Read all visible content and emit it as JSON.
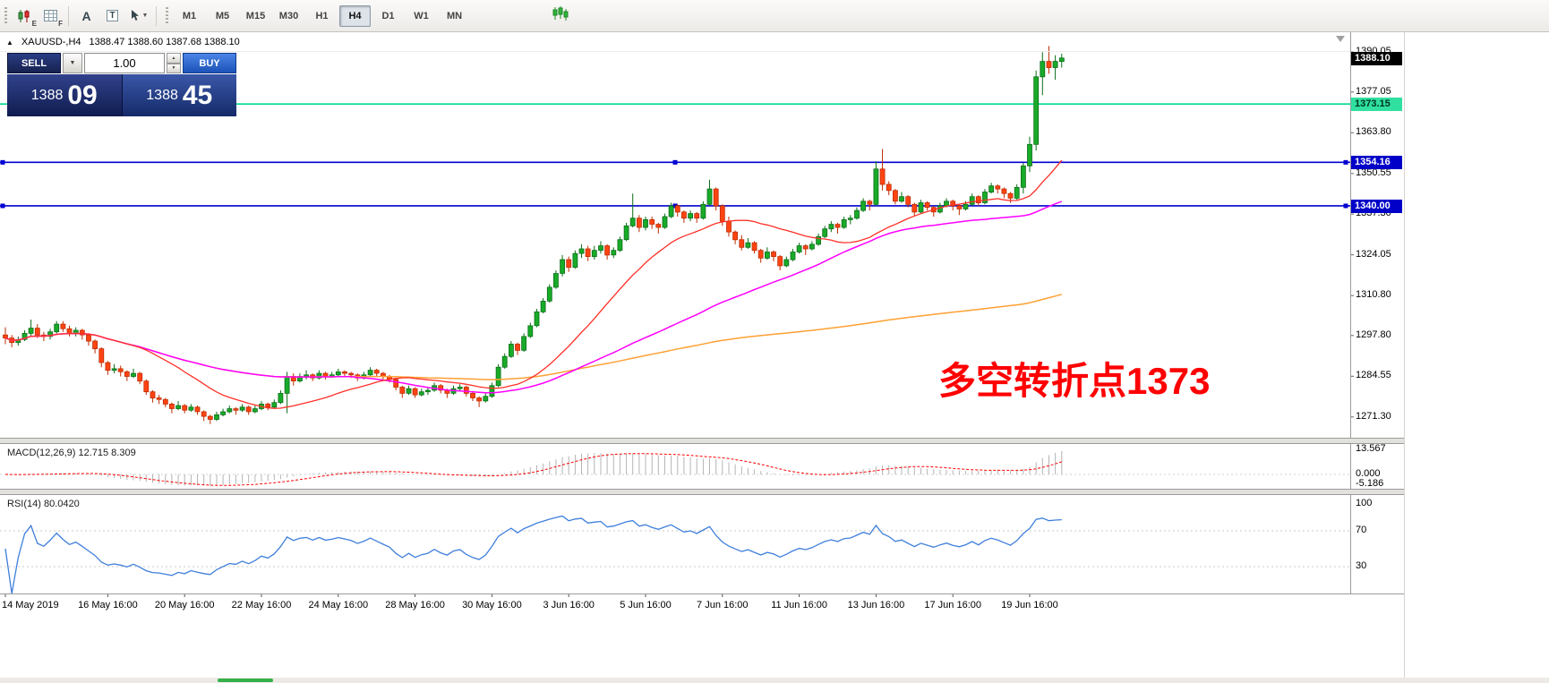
{
  "glyphs": {
    "dropdown": "▼",
    "spin_up": "▲",
    "spin_down": "▼",
    "collapse": "▲"
  },
  "toolbar": {
    "icons": [
      {
        "name": "candlestick-chart-icon",
        "sub": "E"
      },
      {
        "name": "grid-icon",
        "sub": "F"
      },
      {
        "name": "text-tool-icon",
        "glyph": "A"
      },
      {
        "name": "text-label-tool-icon",
        "glyph": "T"
      },
      {
        "name": "cursor-tool-icon",
        "dropdown": true
      }
    ],
    "timeframes": [
      {
        "label": "M1"
      },
      {
        "label": "M5"
      },
      {
        "label": "M15"
      },
      {
        "label": "M30"
      },
      {
        "label": "H1"
      },
      {
        "label": "H4"
      },
      {
        "label": "D1"
      },
      {
        "label": "W1"
      },
      {
        "label": "MN"
      }
    ],
    "active_timeframe": "H4"
  },
  "symbol_bar": {
    "title": "XAUUSD-,H4",
    "ohlc": "1388.47 1388.60 1387.68 1388.10"
  },
  "trade_panel": {
    "sell_label": "SELL",
    "buy_label": "BUY",
    "volume": "1.00",
    "bid": {
      "small": "1388",
      "big": "09"
    },
    "ask": {
      "small": "1388",
      "big": "45"
    }
  },
  "annotation": {
    "text": "多空转折点1373",
    "color": "#ff0000"
  },
  "indicators": {
    "macd": {
      "label": "MACD(12,26,9) 12.715 8.309",
      "ticks": [
        "13.567",
        "0.000",
        "-5.186"
      ]
    },
    "rsi": {
      "label": "RSI(14) 80.0420",
      "ticks": [
        "100",
        "70",
        "30"
      ]
    }
  },
  "chart_data": {
    "type": "candlestick",
    "symbol": "XAUUSD-",
    "timeframe": "H4",
    "ylim": [
      1264.84,
      1396.5
    ],
    "y_ticks": [
      1390.05,
      1377.05,
      1363.8,
      1350.55,
      1337.3,
      1324.05,
      1310.8,
      1297.8,
      1284.55,
      1271.3
    ],
    "bull_color": "#18ab29",
    "bull_border": "#0c6e18",
    "bear_color": "#ff4412",
    "bear_border": "#bd2c00",
    "current_price": {
      "price": 1388.1,
      "label": "1388.10",
      "label_bg": "#000000",
      "label_fg": "#ffffff"
    },
    "levels": [
      {
        "price": 1373.15,
        "label": "1373.15",
        "color": "#00dc8c",
        "width": 1.6,
        "label_bg": "#2fe0a0",
        "label_fg": "#00321f",
        "markers": false
      },
      {
        "price": 1354.16,
        "label": "1354.16",
        "color": "#0000d0",
        "width": 1.6,
        "label_bg": "#0000c8",
        "label_fg": "#ffffff",
        "markers": true
      },
      {
        "price": 1340.0,
        "label": "1340.00",
        "color": "#0000d0",
        "width": 1.6,
        "label_bg": "#0000c8",
        "label_fg": "#ffffff",
        "markers": true
      }
    ],
    "moving_averages": [
      {
        "name": "fast",
        "type": "sma",
        "period": 20,
        "color": "#ff3028",
        "width": 1.3
      },
      {
        "name": "mid",
        "type": "sma",
        "period": 55,
        "color": "#ff00ff",
        "width": 1.5
      },
      {
        "name": "slow",
        "type": "sma",
        "period": 160,
        "color": "#ffa033",
        "width": 1.5
      }
    ],
    "macd": {
      "fast": 12,
      "slow": 26,
      "signal": 9,
      "main_color": "#b4b4b4",
      "signal_color": "#ff0000",
      "ticks": [
        13.567,
        0.0,
        -5.186
      ]
    },
    "rsi": {
      "period": 14,
      "color": "#3f7fdc",
      "levels": [
        70,
        30
      ],
      "ticks": [
        100,
        70,
        30
      ]
    },
    "x_labels": [
      {
        "text": "14 May 2019",
        "index": 0
      },
      {
        "text": "16 May 16:00",
        "index": 16
      },
      {
        "text": "20 May 16:00",
        "index": 28
      },
      {
        "text": "22 May 16:00",
        "index": 40
      },
      {
        "text": "24 May 16:00",
        "index": 52
      },
      {
        "text": "28 May 16:00",
        "index": 64
      },
      {
        "text": "30 May 16:00",
        "index": 76
      },
      {
        "text": "3 Jun 16:00",
        "index": 88
      },
      {
        "text": "5 Jun 16:00",
        "index": 100
      },
      {
        "text": "7 Jun 16:00",
        "index": 112
      },
      {
        "text": "11 Jun 16:00",
        "index": 124
      },
      {
        "text": "13 Jun 16:00",
        "index": 136
      },
      {
        "text": "17 Jun 16:00",
        "index": 148
      },
      {
        "text": "19 Jun 16:00",
        "index": 160
      }
    ],
    "ohlc": [
      [
        1298.0,
        1300.5,
        1295.0,
        1297.0
      ],
      [
        1297.0,
        1298.0,
        1294.0,
        1295.5
      ],
      [
        1295.5,
        1297.5,
        1294.5,
        1296.5
      ],
      [
        1296.5,
        1299.5,
        1296.0,
        1298.5
      ],
      [
        1298.5,
        1303.0,
        1297.5,
        1300.2
      ],
      [
        1300.2,
        1301.5,
        1297.0,
        1298.0
      ],
      [
        1298.0,
        1299.0,
        1296.0,
        1297.5
      ],
      [
        1297.5,
        1300.0,
        1296.5,
        1299.0
      ],
      [
        1299.0,
        1302.5,
        1298.5,
        1301.5
      ],
      [
        1301.5,
        1302.5,
        1299.0,
        1300.0
      ],
      [
        1300.0,
        1301.0,
        1297.5,
        1298.5
      ],
      [
        1298.5,
        1300.5,
        1297.5,
        1299.5
      ],
      [
        1299.5,
        1300.0,
        1296.5,
        1298.0
      ],
      [
        1298.0,
        1298.5,
        1294.5,
        1296.0
      ],
      [
        1296.0,
        1296.5,
        1292.0,
        1293.5
      ],
      [
        1293.5,
        1294.0,
        1287.5,
        1289.0
      ],
      [
        1289.0,
        1289.5,
        1285.0,
        1286.5
      ],
      [
        1286.5,
        1288.5,
        1285.5,
        1287.0
      ],
      [
        1287.0,
        1288.0,
        1284.5,
        1286.0
      ],
      [
        1286.0,
        1286.5,
        1283.0,
        1284.5
      ],
      [
        1284.5,
        1287.0,
        1284.0,
        1285.5
      ],
      [
        1285.5,
        1286.0,
        1282.0,
        1283.0
      ],
      [
        1283.0,
        1283.5,
        1278.5,
        1279.5
      ],
      [
        1279.5,
        1280.0,
        1276.0,
        1277.5
      ],
      [
        1277.5,
        1278.5,
        1275.5,
        1277.0
      ],
      [
        1277.0,
        1277.5,
        1274.5,
        1275.5
      ],
      [
        1275.5,
        1276.0,
        1272.5,
        1274.0
      ],
      [
        1274.0,
        1276.5,
        1273.5,
        1275.0
      ],
      [
        1275.0,
        1275.5,
        1272.5,
        1273.5
      ],
      [
        1273.5,
        1275.5,
        1273.0,
        1274.5
      ],
      [
        1274.5,
        1275.0,
        1272.0,
        1273.0
      ],
      [
        1273.0,
        1273.5,
        1270.0,
        1271.5
      ],
      [
        1271.5,
        1272.0,
        1269.0,
        1270.5
      ],
      [
        1270.5,
        1273.0,
        1270.0,
        1272.0
      ],
      [
        1272.0,
        1274.0,
        1271.5,
        1273.0
      ],
      [
        1273.0,
        1275.0,
        1272.5,
        1274.0
      ],
      [
        1274.0,
        1274.5,
        1272.0,
        1273.5
      ],
      [
        1273.5,
        1275.5,
        1273.0,
        1274.5
      ],
      [
        1274.5,
        1275.0,
        1272.0,
        1273.0
      ],
      [
        1273.0,
        1275.0,
        1272.5,
        1274.0
      ],
      [
        1274.0,
        1276.5,
        1273.5,
        1275.5
      ],
      [
        1275.5,
        1276.0,
        1273.5,
        1274.5
      ],
      [
        1274.5,
        1277.0,
        1274.0,
        1276.0
      ],
      [
        1276.0,
        1280.0,
        1275.5,
        1279.0
      ],
      [
        1279.0,
        1286.0,
        1272.5,
        1284.5
      ],
      [
        1284.5,
        1285.5,
        1281.5,
        1283.0
      ],
      [
        1283.0,
        1285.5,
        1282.5,
        1284.5
      ],
      [
        1284.5,
        1286.5,
        1283.5,
        1285.0
      ],
      [
        1285.0,
        1285.5,
        1283.0,
        1284.0
      ],
      [
        1284.0,
        1286.5,
        1283.5,
        1285.5
      ],
      [
        1285.5,
        1286.0,
        1283.5,
        1284.5
      ],
      [
        1284.5,
        1286.0,
        1284.0,
        1285.0
      ],
      [
        1285.0,
        1287.0,
        1284.5,
        1286.0
      ],
      [
        1286.0,
        1286.5,
        1284.5,
        1285.5
      ],
      [
        1285.5,
        1286.0,
        1284.0,
        1285.0
      ],
      [
        1285.0,
        1285.5,
        1283.0,
        1284.0
      ],
      [
        1284.0,
        1286.0,
        1283.5,
        1285.0
      ],
      [
        1285.0,
        1287.5,
        1284.5,
        1286.5
      ],
      [
        1286.5,
        1287.0,
        1284.5,
        1285.5
      ],
      [
        1285.5,
        1286.0,
        1283.5,
        1284.5
      ],
      [
        1284.5,
        1285.0,
        1282.5,
        1283.5
      ],
      [
        1283.5,
        1284.0,
        1280.0,
        1281.0
      ],
      [
        1281.0,
        1281.5,
        1277.5,
        1279.0
      ],
      [
        1279.0,
        1281.5,
        1278.5,
        1280.5
      ],
      [
        1280.5,
        1281.0,
        1277.5,
        1278.5
      ],
      [
        1278.5,
        1280.5,
        1278.0,
        1279.5
      ],
      [
        1279.5,
        1281.0,
        1278.5,
        1280.0
      ],
      [
        1280.0,
        1282.5,
        1279.5,
        1281.5
      ],
      [
        1281.5,
        1282.0,
        1279.0,
        1280.0
      ],
      [
        1280.0,
        1280.5,
        1277.5,
        1279.0
      ],
      [
        1279.0,
        1281.5,
        1278.5,
        1280.5
      ],
      [
        1280.5,
        1282.0,
        1280.0,
        1281.0
      ],
      [
        1281.0,
        1281.5,
        1278.0,
        1279.0
      ],
      [
        1279.0,
        1279.5,
        1276.5,
        1277.5
      ],
      [
        1277.5,
        1278.0,
        1274.5,
        1276.5
      ],
      [
        1276.5,
        1279.0,
        1276.0,
        1278.0
      ],
      [
        1278.0,
        1282.5,
        1277.5,
        1281.5
      ],
      [
        1281.5,
        1288.5,
        1281.0,
        1287.5
      ],
      [
        1287.5,
        1292.0,
        1287.0,
        1291.0
      ],
      [
        1291.0,
        1296.0,
        1290.5,
        1295.0
      ],
      [
        1295.0,
        1295.5,
        1291.5,
        1293.0
      ],
      [
        1293.0,
        1298.5,
        1292.5,
        1297.5
      ],
      [
        1297.5,
        1302.0,
        1297.0,
        1301.0
      ],
      [
        1301.0,
        1306.5,
        1300.5,
        1305.5
      ],
      [
        1305.5,
        1310.0,
        1305.0,
        1309.0
      ],
      [
        1309.0,
        1314.5,
        1308.5,
        1313.5
      ],
      [
        1313.5,
        1319.0,
        1313.0,
        1318.0
      ],
      [
        1318.0,
        1324.0,
        1317.0,
        1322.5
      ],
      [
        1322.5,
        1323.5,
        1318.5,
        1320.0
      ],
      [
        1320.0,
        1325.5,
        1319.5,
        1324.5
      ],
      [
        1324.5,
        1327.5,
        1323.0,
        1326.0
      ],
      [
        1326.0,
        1327.0,
        1322.0,
        1323.5
      ],
      [
        1323.5,
        1327.0,
        1322.5,
        1325.5
      ],
      [
        1325.5,
        1328.5,
        1324.5,
        1327.0
      ],
      [
        1327.0,
        1327.5,
        1322.5,
        1324.0
      ],
      [
        1324.0,
        1326.5,
        1323.0,
        1325.5
      ],
      [
        1325.5,
        1330.0,
        1325.0,
        1329.0
      ],
      [
        1329.0,
        1334.5,
        1328.5,
        1333.5
      ],
      [
        1333.5,
        1344.0,
        1333.0,
        1336.0
      ],
      [
        1336.0,
        1337.0,
        1331.5,
        1333.0
      ],
      [
        1333.0,
        1336.5,
        1332.0,
        1335.5
      ],
      [
        1335.5,
        1336.5,
        1332.5,
        1334.0
      ],
      [
        1334.0,
        1334.5,
        1331.0,
        1333.0
      ],
      [
        1333.0,
        1337.5,
        1332.5,
        1336.5
      ],
      [
        1336.5,
        1341.0,
        1336.0,
        1340.0
      ],
      [
        1340.0,
        1340.5,
        1336.5,
        1338.0
      ],
      [
        1338.0,
        1338.5,
        1334.5,
        1336.0
      ],
      [
        1336.0,
        1338.5,
        1335.0,
        1337.5
      ],
      [
        1337.5,
        1338.0,
        1334.5,
        1336.0
      ],
      [
        1336.0,
        1341.5,
        1335.5,
        1340.5
      ],
      [
        1340.5,
        1348.5,
        1340.0,
        1345.5
      ],
      [
        1345.5,
        1346.0,
        1338.5,
        1340.0
      ],
      [
        1340.0,
        1340.5,
        1333.5,
        1335.0
      ],
      [
        1335.0,
        1336.5,
        1330.0,
        1331.5
      ],
      [
        1331.5,
        1332.0,
        1327.5,
        1329.0
      ],
      [
        1329.0,
        1330.5,
        1325.5,
        1326.5
      ],
      [
        1326.5,
        1329.5,
        1326.0,
        1328.0
      ],
      [
        1328.0,
        1328.5,
        1324.5,
        1325.5
      ],
      [
        1325.5,
        1326.0,
        1321.5,
        1323.0
      ],
      [
        1323.0,
        1326.5,
        1322.5,
        1325.0
      ],
      [
        1325.0,
        1325.5,
        1322.0,
        1323.5
      ],
      [
        1323.5,
        1324.0,
        1319.0,
        1320.5
      ],
      [
        1320.5,
        1323.5,
        1320.0,
        1322.5
      ],
      [
        1322.5,
        1326.0,
        1322.0,
        1325.0
      ],
      [
        1325.0,
        1328.0,
        1324.5,
        1327.0
      ],
      [
        1327.0,
        1327.5,
        1324.0,
        1326.0
      ],
      [
        1326.0,
        1328.5,
        1325.5,
        1327.5
      ],
      [
        1327.5,
        1331.0,
        1327.0,
        1330.0
      ],
      [
        1330.0,
        1333.5,
        1329.5,
        1332.5
      ],
      [
        1332.5,
        1335.0,
        1331.5,
        1334.0
      ],
      [
        1334.0,
        1334.5,
        1331.0,
        1333.0
      ],
      [
        1333.0,
        1336.5,
        1332.5,
        1335.5
      ],
      [
        1335.5,
        1337.0,
        1334.0,
        1336.0
      ],
      [
        1336.0,
        1339.5,
        1335.5,
        1338.5
      ],
      [
        1338.5,
        1342.5,
        1338.0,
        1341.5
      ],
      [
        1341.5,
        1342.0,
        1338.5,
        1340.5
      ],
      [
        1340.5,
        1354.5,
        1340.0,
        1352.0
      ],
      [
        1352.0,
        1358.5,
        1345.0,
        1347.0
      ],
      [
        1347.0,
        1348.0,
        1343.5,
        1345.0
      ],
      [
        1345.0,
        1345.5,
        1340.5,
        1341.5
      ],
      [
        1341.5,
        1344.5,
        1341.0,
        1343.0
      ],
      [
        1343.0,
        1343.5,
        1339.5,
        1340.5
      ],
      [
        1340.5,
        1341.0,
        1336.5,
        1338.0
      ],
      [
        1338.0,
        1342.0,
        1337.5,
        1341.0
      ],
      [
        1341.0,
        1341.5,
        1338.5,
        1339.5
      ],
      [
        1339.5,
        1340.0,
        1336.5,
        1338.0
      ],
      [
        1338.0,
        1341.0,
        1337.5,
        1340.0
      ],
      [
        1340.0,
        1342.5,
        1339.5,
        1341.5
      ],
      [
        1341.5,
        1342.0,
        1338.5,
        1340.0
      ],
      [
        1340.0,
        1340.5,
        1337.0,
        1339.0
      ],
      [
        1339.0,
        1341.5,
        1338.5,
        1340.5
      ],
      [
        1340.5,
        1344.0,
        1340.0,
        1343.0
      ],
      [
        1343.0,
        1343.5,
        1340.0,
        1341.0
      ],
      [
        1341.0,
        1345.5,
        1340.5,
        1344.5
      ],
      [
        1344.5,
        1347.5,
        1344.0,
        1346.5
      ],
      [
        1346.5,
        1347.0,
        1344.0,
        1345.5
      ],
      [
        1345.5,
        1346.0,
        1342.5,
        1344.0
      ],
      [
        1344.0,
        1344.5,
        1341.0,
        1342.5
      ],
      [
        1342.5,
        1347.0,
        1342.0,
        1346.0
      ],
      [
        1346.0,
        1354.0,
        1344.0,
        1353.0
      ],
      [
        1353.0,
        1362.5,
        1351.0,
        1360.0
      ],
      [
        1360.0,
        1384.0,
        1358.0,
        1382.0
      ],
      [
        1382.0,
        1390.0,
        1376.0,
        1387.0
      ],
      [
        1387.0,
        1392.0,
        1383.0,
        1385.0
      ],
      [
        1385.0,
        1389.0,
        1381.0,
        1387.0
      ],
      [
        1387.0,
        1389.5,
        1385.0,
        1388.1
      ]
    ]
  }
}
